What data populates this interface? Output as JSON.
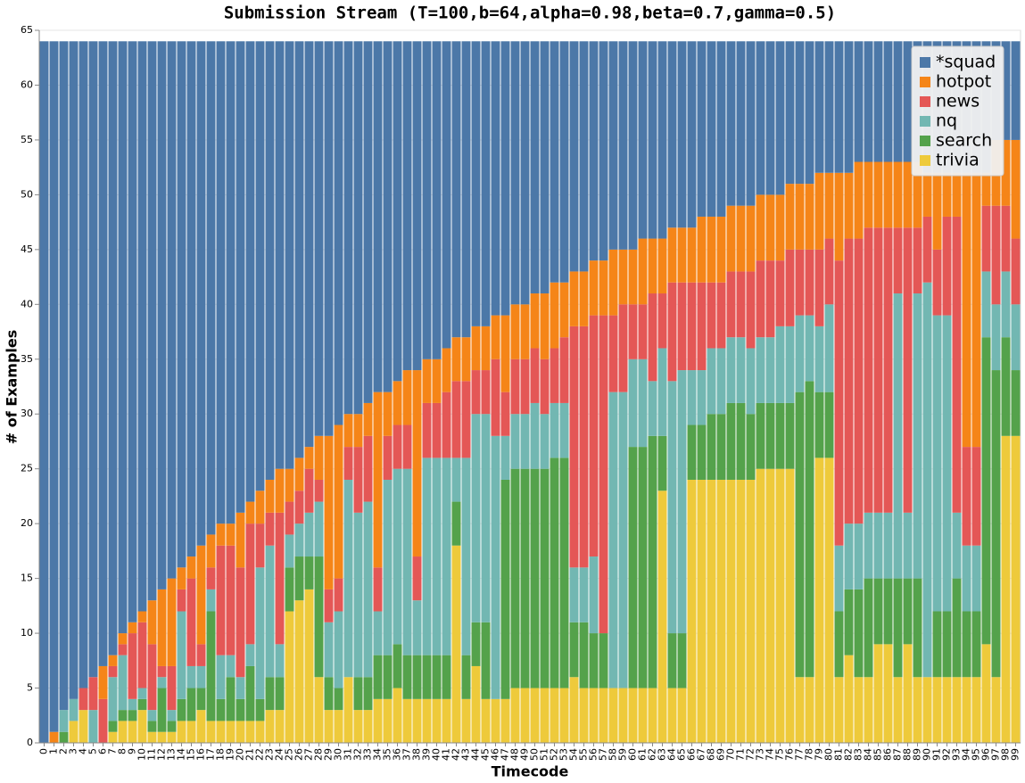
{
  "chart_data": {
    "type": "stacked_bar",
    "title": "Submission Stream (T=100,b=64,alpha=0.98,beta=0.7,gamma=0.5)",
    "x_label": "Timecode",
    "y_label": "# of Examples",
    "categories": [
      "0",
      "1",
      "2",
      "3",
      "4",
      "5",
      "6",
      "7",
      "8",
      "9",
      "10",
      "11",
      "12",
      "13",
      "14",
      "15",
      "16",
      "17",
      "18",
      "19",
      "20",
      "21",
      "22",
      "23",
      "24",
      "25",
      "26",
      "27",
      "28",
      "29",
      "30",
      "31",
      "32",
      "33",
      "34",
      "35",
      "36",
      "37",
      "38",
      "39",
      "40",
      "41",
      "42",
      "43",
      "44",
      "45",
      "46",
      "47",
      "48",
      "49",
      "50",
      "51",
      "52",
      "53",
      "54",
      "55",
      "56",
      "57",
      "58",
      "59",
      "60",
      "61",
      "62",
      "63",
      "64",
      "65",
      "66",
      "67",
      "68",
      "69",
      "70",
      "71",
      "72",
      "73",
      "74",
      "75",
      "76",
      "77",
      "78",
      "79",
      "80",
      "81",
      "82",
      "83",
      "84",
      "85",
      "86",
      "87",
      "88",
      "89",
      "90",
      "91",
      "92",
      "93",
      "94",
      "95",
      "96",
      "97",
      "98",
      "99"
    ],
    "ylim": [
      0,
      65
    ],
    "yticks": [
      0,
      5,
      10,
      15,
      20,
      25,
      30,
      35,
      40,
      45,
      50,
      55,
      60,
      65
    ],
    "grid": true,
    "legend": "top-right",
    "series": [
      {
        "name": "*squad",
        "color": "#4c78a8",
        "values": [
          64,
          63,
          61,
          60,
          59,
          58,
          57,
          56,
          54,
          53,
          52,
          51,
          50,
          49,
          48,
          47,
          46,
          45,
          44,
          44,
          43,
          42,
          41,
          40,
          39,
          39,
          38,
          37,
          36,
          36,
          35,
          34,
          34,
          33,
          32,
          32,
          31,
          30,
          30,
          29,
          29,
          28,
          27,
          27,
          26,
          26,
          25,
          25,
          24,
          24,
          23,
          23,
          22,
          22,
          21,
          21,
          20,
          20,
          19,
          19,
          19,
          18,
          18,
          18,
          17,
          17,
          17,
          16,
          16,
          16,
          15,
          15,
          15,
          14,
          14,
          14,
          13,
          13,
          13,
          12,
          12,
          12,
          12,
          11,
          11,
          11,
          11,
          11,
          11,
          11,
          12,
          12,
          12,
          12,
          12,
          12,
          12,
          9,
          9,
          9
        ]
      },
      {
        "name": "hotpot",
        "color": "#f58518",
        "values": [
          0,
          1,
          0,
          0,
          0,
          0,
          3,
          1,
          1,
          1,
          1,
          4,
          7,
          8,
          2,
          2,
          9,
          3,
          2,
          2,
          5,
          2,
          3,
          3,
          4,
          3,
          3,
          2,
          4,
          14,
          14,
          3,
          3,
          3,
          16,
          4,
          4,
          5,
          17,
          4,
          4,
          4,
          4,
          4,
          4,
          4,
          4,
          7,
          5,
          5,
          5,
          6,
          6,
          5,
          5,
          5,
          5,
          5,
          6,
          5,
          5,
          6,
          5,
          5,
          5,
          5,
          5,
          6,
          6,
          6,
          6,
          6,
          6,
          6,
          6,
          6,
          6,
          6,
          6,
          7,
          6,
          8,
          6,
          7,
          6,
          6,
          6,
          6,
          6,
          6,
          4,
          7,
          4,
          4,
          25,
          25,
          3,
          6,
          6,
          9
        ]
      },
      {
        "name": "news",
        "color": "#e45756",
        "values": [
          0,
          0,
          0,
          0,
          2,
          3,
          4,
          1,
          1,
          6,
          6,
          6,
          1,
          4,
          2,
          8,
          2,
          2,
          10,
          10,
          10,
          11,
          4,
          3,
          12,
          3,
          3,
          4,
          2,
          3,
          3,
          3,
          6,
          6,
          4,
          4,
          4,
          4,
          4,
          5,
          5,
          6,
          7,
          7,
          4,
          4,
          7,
          4,
          5,
          5,
          5,
          5,
          5,
          6,
          22,
          22,
          22,
          29,
          7,
          8,
          5,
          5,
          8,
          5,
          9,
          8,
          8,
          8,
          6,
          6,
          6,
          6,
          7,
          7,
          7,
          6,
          7,
          6,
          6,
          7,
          6,
          26,
          26,
          26,
          26,
          26,
          26,
          6,
          26,
          6,
          6,
          6,
          9,
          27,
          9,
          9,
          6,
          9,
          6,
          6
        ]
      },
      {
        "name": "nq",
        "color": "#72b7b2",
        "values": [
          0,
          0,
          2,
          2,
          0,
          3,
          0,
          4,
          5,
          1,
          1,
          1,
          1,
          1,
          8,
          2,
          2,
          2,
          4,
          2,
          2,
          2,
          12,
          12,
          3,
          3,
          3,
          4,
          5,
          5,
          7,
          18,
          15,
          16,
          4,
          16,
          16,
          17,
          5,
          18,
          18,
          18,
          4,
          18,
          19,
          19,
          24,
          4,
          5,
          5,
          6,
          5,
          5,
          5,
          5,
          5,
          7,
          0,
          27,
          27,
          8,
          8,
          5,
          8,
          23,
          24,
          5,
          5,
          6,
          6,
          6,
          6,
          6,
          6,
          6,
          7,
          7,
          7,
          6,
          6,
          8,
          6,
          6,
          6,
          6,
          6,
          6,
          26,
          6,
          26,
          36,
          27,
          27,
          6,
          6,
          6,
          6,
          6,
          6,
          6
        ]
      },
      {
        "name": "search",
        "color": "#54a24b",
        "values": [
          0,
          0,
          1,
          0,
          0,
          0,
          0,
          1,
          1,
          1,
          1,
          1,
          4,
          1,
          2,
          3,
          2,
          10,
          2,
          4,
          2,
          5,
          2,
          3,
          3,
          4,
          4,
          3,
          11,
          3,
          2,
          0,
          3,
          3,
          4,
          4,
          4,
          4,
          4,
          4,
          4,
          4,
          4,
          4,
          4,
          7,
          0,
          20,
          20,
          20,
          20,
          20,
          21,
          21,
          5,
          6,
          5,
          5,
          0,
          0,
          22,
          22,
          23,
          5,
          5,
          5,
          5,
          5,
          6,
          6,
          7,
          7,
          6,
          6,
          6,
          6,
          6,
          26,
          27,
          6,
          6,
          6,
          6,
          8,
          9,
          6,
          6,
          9,
          6,
          9,
          0,
          6,
          6,
          9,
          6,
          6,
          28,
          28,
          9,
          6
        ]
      },
      {
        "name": "trivia",
        "color": "#eeca3b",
        "values": [
          0,
          0,
          0,
          2,
          3,
          0,
          0,
          1,
          2,
          2,
          3,
          1,
          1,
          1,
          2,
          2,
          3,
          2,
          2,
          2,
          2,
          2,
          2,
          3,
          3,
          12,
          13,
          14,
          6,
          3,
          3,
          6,
          3,
          3,
          4,
          4,
          5,
          4,
          4,
          4,
          4,
          4,
          18,
          4,
          7,
          4,
          4,
          4,
          5,
          5,
          5,
          5,
          5,
          5,
          6,
          5,
          5,
          5,
          5,
          5,
          5,
          5,
          5,
          23,
          5,
          5,
          24,
          24,
          24,
          24,
          24,
          24,
          24,
          25,
          25,
          25,
          25,
          6,
          6,
          26,
          26,
          6,
          8,
          6,
          6,
          9,
          9,
          6,
          9,
          6,
          6,
          6,
          6,
          6,
          6,
          6,
          9,
          6,
          28,
          28
        ]
      }
    ]
  }
}
